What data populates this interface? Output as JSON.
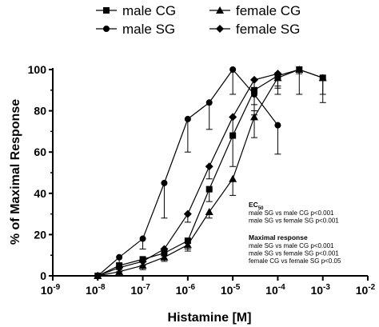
{
  "chart_data": {
    "type": "line",
    "title": "",
    "xlabel": "Histamine [M]",
    "ylabel": "% of Maximal Response",
    "x_scale": "log",
    "xlim": [
      1e-09,
      0.01
    ],
    "ylim": [
      0,
      100
    ],
    "x_ticks": [
      {
        "value": 1e-09,
        "base": "10",
        "exp": "-9"
      },
      {
        "value": 1e-08,
        "base": "10",
        "exp": "-8"
      },
      {
        "value": 1e-07,
        "base": "10",
        "exp": "-7"
      },
      {
        "value": 1e-06,
        "base": "10",
        "exp": "-6"
      },
      {
        "value": 1e-05,
        "base": "10",
        "exp": "-5"
      },
      {
        "value": 0.0001,
        "base": "10",
        "exp": "-4"
      },
      {
        "value": 0.001,
        "base": "10",
        "exp": "-3"
      },
      {
        "value": 0.01,
        "base": "10",
        "exp": "-2"
      }
    ],
    "y_ticks": [
      "0",
      "20",
      "40",
      "60",
      "80",
      "100"
    ],
    "grid": false,
    "legend_position": "top",
    "series": [
      {
        "name": "male CG",
        "marker": "square",
        "x": [
          1e-08,
          3e-08,
          1e-07,
          3e-07,
          1e-06,
          3e-06,
          1e-05,
          3e-05,
          0.0001,
          0.0003,
          0.001
        ],
        "y": [
          0,
          5,
          8,
          11,
          17,
          42,
          68,
          90,
          97,
          100,
          96
        ],
        "err": [
          0,
          2,
          3,
          3,
          4,
          6,
          15,
          10,
          5,
          2,
          8
        ]
      },
      {
        "name": "male SG",
        "marker": "circle",
        "x": [
          1e-08,
          3e-08,
          1e-07,
          3e-07,
          1e-06,
          3e-06,
          1e-05,
          3e-05,
          0.0001
        ],
        "y": [
          0,
          9,
          18,
          45,
          76,
          84,
          100,
          88,
          73
        ],
        "err": [
          0,
          3,
          5,
          17,
          16,
          13,
          12,
          10,
          14
        ]
      },
      {
        "name": "female CG",
        "marker": "triangle",
        "x": [
          1e-08,
          3e-08,
          1e-07,
          3e-07,
          1e-06,
          3e-06,
          1e-05,
          3e-05,
          0.0001,
          0.0003,
          0.001
        ],
        "y": [
          0,
          2,
          5,
          9,
          15,
          31,
          47,
          77,
          96,
          100,
          96
        ],
        "err": [
          0,
          2,
          2,
          2,
          3,
          3,
          8,
          10,
          8,
          12,
          12
        ]
      },
      {
        "name": "female SG",
        "marker": "diamond",
        "x": [
          1e-08,
          3e-08,
          1e-07,
          3e-07,
          1e-06,
          3e-06,
          1e-05,
          3e-05,
          0.0001
        ],
        "y": [
          0,
          4,
          7,
          13,
          30,
          53,
          77,
          95,
          98
        ],
        "err": [
          0,
          2,
          3,
          3,
          4,
          6,
          9,
          12,
          7
        ]
      }
    ],
    "annotations": [
      {
        "heading": "EC",
        "heading_sub": "50",
        "lines": [
          "male SG vs male CG p<0.001",
          "male SG vs female SG p<0.001"
        ]
      },
      {
        "heading": "Maximal response",
        "heading_sub": "",
        "lines": [
          "male SG vs male CG p<0.001",
          "male SG vs female SG p<0.001",
          "female CG vs female SG p<0.05"
        ]
      }
    ]
  }
}
